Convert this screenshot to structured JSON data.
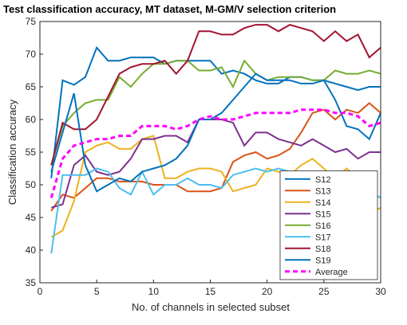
{
  "chart_data": {
    "type": "line",
    "title": "Test classification accuracy, MT dataset, M-GM/V selection criterion",
    "x_label": "No. of channels in selected subset",
    "y_label": "Classification accuracy",
    "x": [
      1,
      2,
      3,
      4,
      5,
      6,
      7,
      8,
      9,
      10,
      11,
      12,
      13,
      14,
      15,
      16,
      17,
      18,
      19,
      20,
      21,
      22,
      23,
      24,
      25,
      26,
      27,
      28,
      29,
      30
    ],
    "xlim": [
      0,
      30
    ],
    "xticks": [
      0,
      5,
      10,
      15,
      20,
      25,
      30
    ],
    "ylim": [
      35,
      75
    ],
    "yticks": [
      35,
      40,
      45,
      50,
      55,
      60,
      65,
      70,
      75
    ],
    "legend": "lower right",
    "series": [
      {
        "name": "S12",
        "color": "#0072bd",
        "values": [
          51,
          66,
          65.3,
          66.5,
          71,
          69,
          69,
          69.5,
          69.5,
          69.5,
          68.5,
          69,
          69,
          69,
          69,
          67,
          67.5,
          67,
          66,
          65.5,
          65.5,
          66.5,
          66.5,
          66,
          66,
          65.5,
          65,
          64.5,
          65,
          65
        ]
      },
      {
        "name": "S13",
        "color": "#d95319",
        "values": [
          46,
          48.5,
          48,
          49.5,
          51,
          51,
          50.5,
          50.5,
          50.5,
          50,
          50,
          50,
          49,
          49,
          49,
          49.5,
          53.5,
          54.5,
          55,
          54,
          54.5,
          55.5,
          58,
          61,
          61.5,
          60,
          61.5,
          61,
          62.5,
          61
        ]
      },
      {
        "name": "S14",
        "color": "#edb120",
        "values": [
          42,
          43,
          47.5,
          55,
          56,
          56.5,
          55.5,
          55.5,
          57,
          57.5,
          51,
          51,
          52,
          52.5,
          52.5,
          52,
          49,
          49.5,
          50,
          52.5,
          52,
          51.5,
          53,
          54,
          52.5,
          51,
          52.5,
          51,
          45.5,
          46.5
        ]
      },
      {
        "name": "S15",
        "color": "#7e2f8e",
        "values": [
          46.5,
          47,
          53,
          54.5,
          52,
          51.5,
          52,
          54,
          57,
          57,
          57.5,
          57.5,
          56.5,
          60,
          60,
          60,
          59.5,
          56,
          58,
          58,
          57,
          56.5,
          56,
          57,
          56,
          55,
          55.5,
          54,
          55,
          55
        ]
      },
      {
        "name": "S16",
        "color": "#77ac30",
        "values": [
          53,
          59,
          61,
          62.5,
          63,
          63,
          66.5,
          65,
          67,
          68.5,
          68.5,
          69,
          69,
          67.5,
          67.5,
          68,
          65,
          69,
          67,
          66,
          66.5,
          66.5,
          66.5,
          66,
          66,
          67.5,
          67,
          67,
          67.5,
          67
        ]
      },
      {
        "name": "S17",
        "color": "#4dbeee",
        "values": [
          39.5,
          51.5,
          51.5,
          51.5,
          52.5,
          52,
          49.5,
          48.5,
          52,
          48.5,
          50,
          50,
          51,
          50,
          50,
          49.5,
          51.5,
          52,
          52.5,
          52,
          52.5,
          52,
          50.5,
          51.5,
          51.5,
          51,
          52,
          51.5,
          49,
          48
        ]
      },
      {
        "name": "S18",
        "color": "#a2142f",
        "values": [
          53,
          59.5,
          58.5,
          58.5,
          60,
          63.5,
          67,
          68,
          68.5,
          68.5,
          69,
          67,
          69,
          73.5,
          73.5,
          73,
          73,
          74,
          74.5,
          74.5,
          73.5,
          74.5,
          74,
          73.5,
          72,
          73.5,
          72,
          73,
          69.5,
          71
        ]
      },
      {
        "name": "S19",
        "color": "#0072bd",
        "values": [
          52,
          58,
          64,
          53,
          49,
          50,
          51,
          50.5,
          52,
          52.5,
          53,
          54,
          56,
          60,
          60,
          61,
          63,
          65,
          67,
          66,
          66,
          66,
          65.5,
          65.5,
          66,
          63,
          59,
          58.5,
          57,
          61
        ]
      },
      {
        "name": "Average",
        "color": "#ff00ff",
        "dashed": true,
        "values": [
          48,
          54,
          56,
          56.5,
          57,
          57,
          57.5,
          57.5,
          59,
          59,
          59,
          58.5,
          59,
          60,
          60.5,
          60,
          60,
          60.5,
          61,
          61,
          61,
          61,
          61.5,
          61.5,
          61.5,
          61,
          61,
          60.5,
          59,
          59.5
        ]
      }
    ]
  }
}
